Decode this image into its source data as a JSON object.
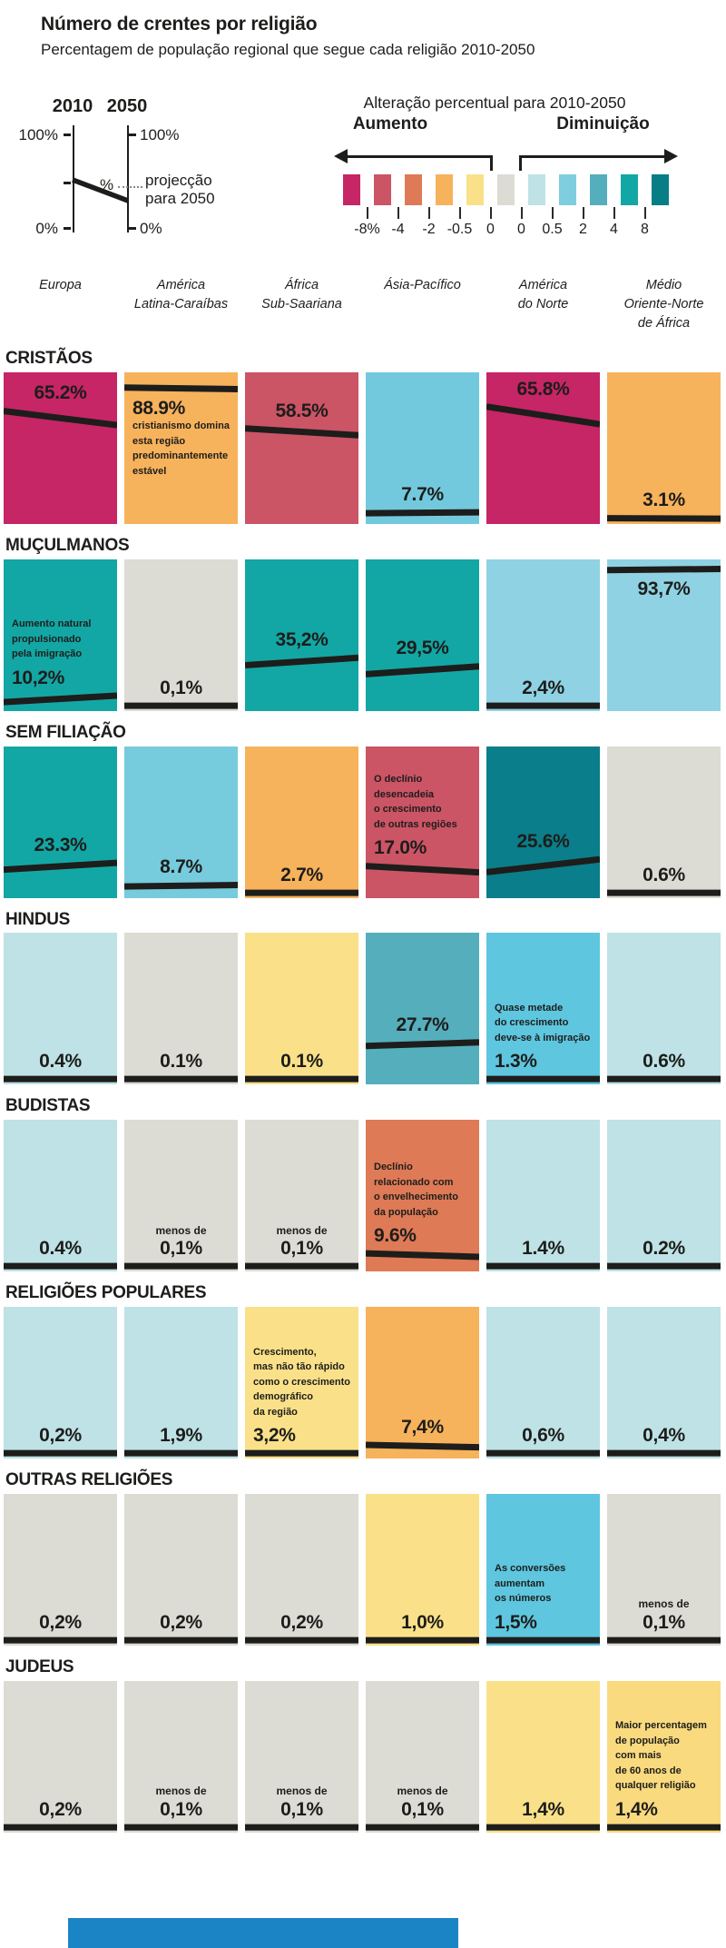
{
  "header": {
    "title": "Número de crentes por religião",
    "subtitle": "Percentagem de população regional que segue cada religião 2010-2050"
  },
  "legend": {
    "mini": {
      "year_left": "2010",
      "year_right": "2050",
      "hundred_left": "100%",
      "hundred_right": "100%",
      "zero_left": "0%",
      "zero_right": "0%",
      "percent_symbol": "%",
      "projection_note": "projecção\npara 2050"
    },
    "scale": {
      "title": "Alteração percentual para 2010-2050",
      "increase_label": "Aumento",
      "decrease_label": "Diminuição",
      "swatches": [
        "#c62566",
        "#cb5465",
        "#de7a56",
        "#f7b25c",
        "#fae189",
        "#dcdbd4",
        "#bee2e5",
        "#7fcee0",
        "#55aebc",
        "#12a7a5",
        "#077d86"
      ],
      "ticks": [
        "-8%",
        "-4",
        "-2",
        "-0.5",
        "0",
        "0",
        "0.5",
        "2",
        "4",
        "8"
      ]
    }
  },
  "footer": {
    "color": "#1b84c4"
  },
  "chart_data": {
    "type": "slopegraph-grid",
    "title": "Número de crentes por religião",
    "subtitle": "Percentagem de população regional que segue cada religião 2010-2050",
    "value_axis": {
      "min": 0,
      "max": 100
    },
    "color_scale_bins": [
      "-8%",
      "-4",
      "-2",
      "-0.5",
      "0",
      "0",
      "0.5",
      "2",
      "4",
      "8"
    ],
    "columns": [
      "Europa",
      "América\nLatina-Caraíbas",
      "África\nSub-Saariana",
      "Ásia-Pacífico",
      "América\ndo Norte",
      "Médio\nOriente-Norte\nde África"
    ],
    "rows": [
      {
        "label": "CRISTÃOS",
        "cells": [
          {
            "color": "#c62566",
            "label": "65.2%",
            "v2010": 74.5,
            "v2050": 65.2
          },
          {
            "color": "#f7b25c",
            "label": "88.9%",
            "v2010": 90.0,
            "v2050": 88.9,
            "note": "cristianismo domina\nesta região\npredominantemente\nestável"
          },
          {
            "color": "#cb5465",
            "label": "58.5%",
            "v2010": 63.0,
            "v2050": 58.5
          },
          {
            "color": "#72c9dd",
            "label": "7.7%",
            "v2010": 7.1,
            "v2050": 7.7
          },
          {
            "color": "#c62566",
            "label": "65.8%",
            "v2010": 77.4,
            "v2050": 65.8
          },
          {
            "color": "#f7b25c",
            "label": "3.1%",
            "v2010": 3.8,
            "v2050": 3.1
          }
        ]
      },
      {
        "label": "MUÇULMANOS",
        "cells": [
          {
            "color": "#12a7a5",
            "label": "10,2%",
            "v2010": 5.9,
            "v2050": 10.2,
            "note": "Aumento natural\npropulsionado\npela imigração"
          },
          {
            "color": "#dcdbd4",
            "label": "0,1%",
            "v2010": 0.1,
            "v2050": 0.1
          },
          {
            "color": "#12a7a5",
            "label": "35,2%",
            "v2010": 30.2,
            "v2050": 35.2
          },
          {
            "color": "#12a7a5",
            "label": "29,5%",
            "v2010": 24.3,
            "v2050": 29.5
          },
          {
            "color": "#8fd2e3",
            "label": "2,4%",
            "v2010": 1.0,
            "v2050": 2.4
          },
          {
            "color": "#8fd2e3",
            "label": "93,7%",
            "v2010": 93.0,
            "v2050": 93.7
          }
        ]
      },
      {
        "label": "SEM FILIAÇÃO",
        "cells": [
          {
            "color": "#12a7a5",
            "label": "23.3%",
            "v2010": 18.8,
            "v2050": 23.3
          },
          {
            "color": "#76cbdd",
            "label": "8.7%",
            "v2010": 7.7,
            "v2050": 8.7
          },
          {
            "color": "#f7b25c",
            "label": "2.7%",
            "v2010": 3.3,
            "v2050": 2.7
          },
          {
            "color": "#cb5465",
            "label": "17.0%",
            "v2010": 21.2,
            "v2050": 17.0,
            "note": "O declínio\ndesencadeia\no crescimento\nde outras regiões"
          },
          {
            "color": "#0a7e8a",
            "label": "25.6%",
            "v2010": 17.1,
            "v2050": 25.6
          },
          {
            "color": "#dcdbd4",
            "label": "0.6%",
            "v2010": 0.6,
            "v2050": 0.6
          }
        ]
      },
      {
        "label": "HINDUS",
        "cells": [
          {
            "color": "#bee2e5",
            "label": "0.4%",
            "v2010": 0.2,
            "v2050": 0.4
          },
          {
            "color": "#dcdbd4",
            "label": "0.1%",
            "v2010": 0.1,
            "v2050": 0.1
          },
          {
            "color": "#fae189",
            "label": "0.1%",
            "v2010": 0.1,
            "v2050": 0.1
          },
          {
            "color": "#55aebc",
            "label": "27.7%",
            "v2010": 25.3,
            "v2050": 27.7
          },
          {
            "color": "#5ec6df",
            "label": "1.3%",
            "v2010": 0.7,
            "v2050": 1.3,
            "note": "Quase metade\ndo crescimento\ndeve-se à imigração"
          },
          {
            "color": "#bee2e5",
            "label": "0.6%",
            "v2010": 0.6,
            "v2050": 0.6
          }
        ]
      },
      {
        "label": "BUDISTAS",
        "cells": [
          {
            "color": "#bee2e5",
            "label": "0.4%",
            "v2010": 0.2,
            "v2050": 0.4
          },
          {
            "color": "#dcdbd4",
            "label": "0,1%",
            "prefix": "menos de",
            "v2010": 0.1,
            "v2050": 0.1
          },
          {
            "color": "#dcdbd4",
            "label": "0,1%",
            "prefix": "menos de",
            "v2010": 0.1,
            "v2050": 0.1
          },
          {
            "color": "#de7a56",
            "label": "9.6%",
            "v2010": 11.9,
            "v2050": 9.6,
            "note": "Declínio\nrelacionado com\no envelhecimento\nda população"
          },
          {
            "color": "#bee2e5",
            "label": "1.4%",
            "v2010": 1.1,
            "v2050": 1.4
          },
          {
            "color": "#bee2e5",
            "label": "0.2%",
            "v2010": 0.2,
            "v2050": 0.2
          }
        ]
      },
      {
        "label": "RELIGIÕES POPULARES",
        "cells": [
          {
            "color": "#bee2e5",
            "label": "0,2%",
            "v2010": 0.1,
            "v2050": 0.2
          },
          {
            "color": "#bee2e5",
            "label": "1,9%",
            "v2010": 1.7,
            "v2050": 1.9
          },
          {
            "color": "#fae189",
            "label": "3,2%",
            "v2010": 3.3,
            "v2050": 3.2,
            "note": "Crescimento,\nmas não tão rápido\ncomo o crescimento\ndemográfico\nda região"
          },
          {
            "color": "#f7b25c",
            "label": "7,4%",
            "v2010": 9.0,
            "v2050": 7.4
          },
          {
            "color": "#bee2e5",
            "label": "0,6%",
            "v2010": 0.3,
            "v2050": 0.6
          },
          {
            "color": "#bee2e5",
            "label": "0,4%",
            "v2010": 0.3,
            "v2050": 0.4
          }
        ]
      },
      {
        "label": "OUTRAS RELIGIÕES",
        "cells": [
          {
            "color": "#dcdbd4",
            "label": "0,2%",
            "v2010": 0.1,
            "v2050": 0.2
          },
          {
            "color": "#dcdbd4",
            "label": "0,2%",
            "v2010": 0.2,
            "v2050": 0.2
          },
          {
            "color": "#dcdbd4",
            "label": "0,2%",
            "v2010": 0.2,
            "v2050": 0.2
          },
          {
            "color": "#fae189",
            "label": "1,0%",
            "v2010": 1.3,
            "v2050": 1.0
          },
          {
            "color": "#5ec6df",
            "label": "1,5%",
            "v2010": 0.6,
            "v2050": 1.5,
            "note": "As conversões\naumentam\nos números"
          },
          {
            "color": "#dcdbd4",
            "label": "0,1%",
            "prefix": "menos de",
            "v2010": 0.1,
            "v2050": 0.1
          }
        ]
      },
      {
        "label": "JUDEUS",
        "cells": [
          {
            "color": "#dcdbd4",
            "label": "0,2%",
            "v2010": 0.2,
            "v2050": 0.2
          },
          {
            "color": "#dcdbd4",
            "label": "0,1%",
            "prefix": "menos de",
            "v2010": 0.1,
            "v2050": 0.1
          },
          {
            "color": "#dcdbd4",
            "label": "0,1%",
            "prefix": "menos de",
            "v2010": 0.1,
            "v2050": 0.1
          },
          {
            "color": "#dcdbd4",
            "label": "0,1%",
            "prefix": "menos de",
            "v2010": 0.1,
            "v2050": 0.1
          },
          {
            "color": "#fae189",
            "label": "1,4%",
            "v2010": 1.8,
            "v2050": 1.4
          },
          {
            "color": "#f9da7e",
            "label": "1,4%",
            "v2010": 1.6,
            "v2050": 1.4,
            "note": "Maior percentagem\nde população\ncom mais\nde 60 anos de\nqualquer religião"
          }
        ]
      }
    ]
  }
}
